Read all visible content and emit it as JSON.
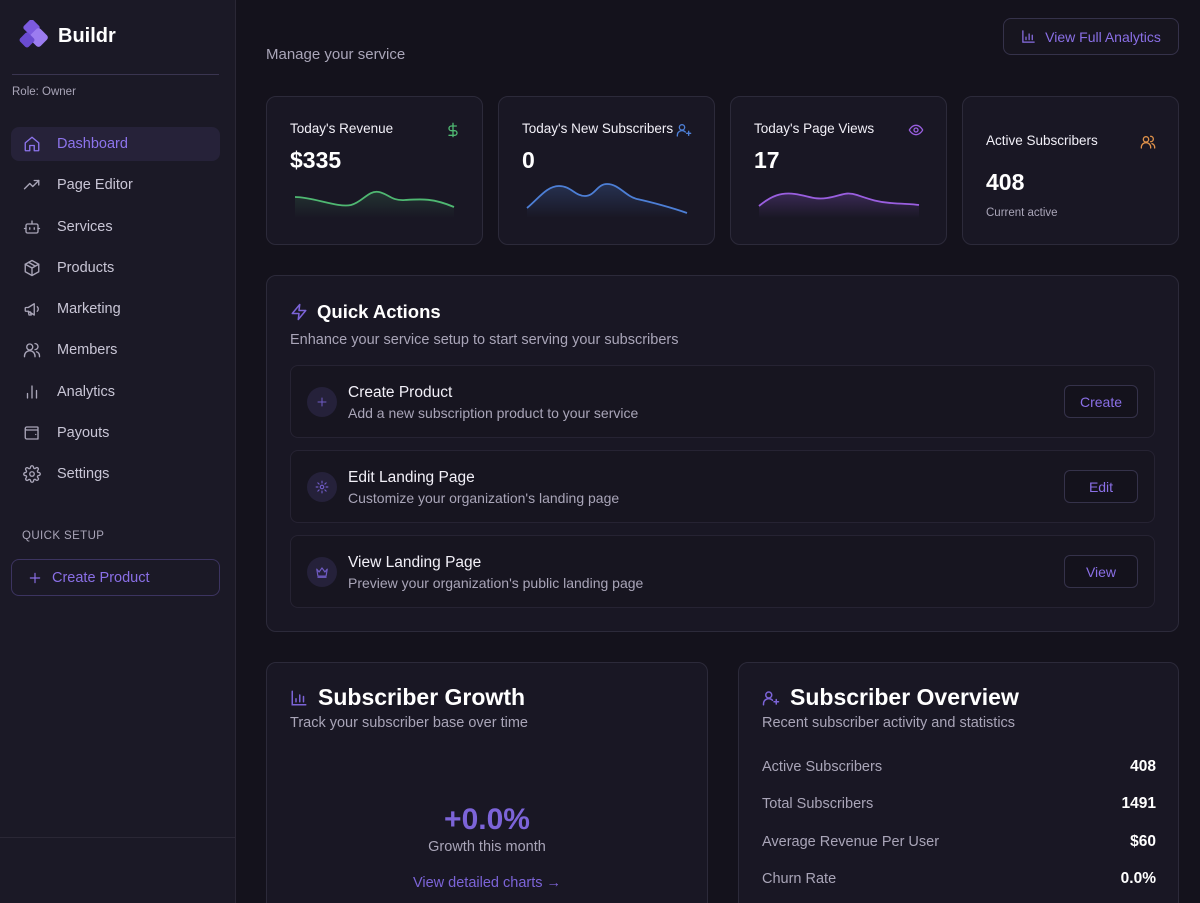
{
  "app": {
    "name": "Buildr",
    "role": "Role: Owner"
  },
  "sidebar": {
    "items": [
      {
        "label": "Dashboard",
        "icon": "home-icon",
        "active": true
      },
      {
        "label": "Page Editor",
        "icon": "trending-up-icon"
      },
      {
        "label": "Services",
        "icon": "bot-icon"
      },
      {
        "label": "Products",
        "icon": "package-icon"
      },
      {
        "label": "Marketing",
        "icon": "megaphone-icon"
      },
      {
        "label": "Members",
        "icon": "users-icon"
      },
      {
        "label": "Analytics",
        "icon": "bar-chart-icon"
      },
      {
        "label": "Payouts",
        "icon": "wallet-icon"
      },
      {
        "label": "Settings",
        "icon": "gear-icon"
      }
    ],
    "quick_setup_label": "QUICK SETUP",
    "quick_setup_button": "Create Product"
  },
  "header": {
    "subtitle": "Manage your service",
    "analytics_button": "View Full Analytics"
  },
  "stats": [
    {
      "title": "Today's Revenue",
      "value": "$335",
      "icon": "dollar-icon"
    },
    {
      "title": "Today's New Subscribers",
      "value": "0",
      "icon": "user-plus-icon"
    },
    {
      "title": "Today's Page Views",
      "value": "17",
      "icon": "eye-icon"
    },
    {
      "title": "Active Subscribers",
      "value": "408",
      "sub": "Current active",
      "icon": "users-icon"
    }
  ],
  "quick_actions": {
    "title": "Quick Actions",
    "description": "Enhance your service setup to start serving your subscribers",
    "items": [
      {
        "title": "Create Product",
        "description": "Add a new subscription product to your service",
        "button": "Create",
        "icon": "plus-icon"
      },
      {
        "title": "Edit Landing Page",
        "description": "Customize your organization's landing page",
        "button": "Edit",
        "icon": "gear-icon"
      },
      {
        "title": "View Landing Page",
        "description": "Preview your organization's public landing page",
        "button": "View",
        "icon": "crown-icon"
      }
    ]
  },
  "growth": {
    "title": "Subscriber Growth",
    "description": "Track your subscriber base over time",
    "value": "+0.0%",
    "label": "Growth this month",
    "link": "View detailed charts →"
  },
  "overview": {
    "title": "Subscriber Overview",
    "description": "Recent subscriber activity and statistics",
    "rows": [
      {
        "label": "Active Subscribers",
        "value": "408"
      },
      {
        "label": "Total Subscribers",
        "value": "1491"
      },
      {
        "label": "Average Revenue Per User",
        "value": "$60"
      },
      {
        "label": "Churn Rate",
        "value": "0.0%"
      }
    ]
  },
  "colors": {
    "accent": "#8a6fe6",
    "revenue_line": "#4fb872",
    "subscribers_line": "#4d7fd6",
    "views_line": "#9a5fe0",
    "active_icon": "#e0924a"
  }
}
